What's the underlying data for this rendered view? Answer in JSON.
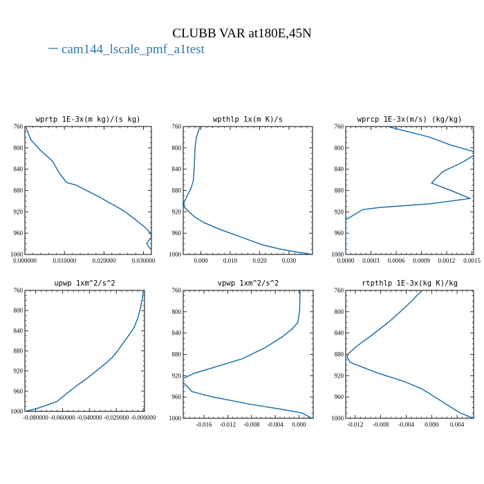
{
  "figure": {
    "title": "CLUBB VAR at180E,45N",
    "legend_label": "cam144_lscale_pmf_a1test",
    "legend_color": "#2a7ab0",
    "line_color": "#1f6fa8"
  },
  "chart_data": [
    {
      "type": "line",
      "title": "wprtp  1E-3x(m kg)/(s kg)",
      "xlim": [
        0.0,
        0.032
      ],
      "ylim": [
        760,
        1000
      ],
      "y_inverted": true,
      "xticks": [
        0.0,
        0.01,
        0.02,
        0.03
      ],
      "xtick_labels": [
        "0.000000",
        "0.010000",
        "0.020000",
        "0.030000"
      ],
      "yticks": [
        760,
        800,
        840,
        880,
        920,
        960,
        1000
      ],
      "ytick_labels": [
        "760",
        "800",
        "840",
        "880",
        "920",
        "960",
        "1000"
      ],
      "series": [
        {
          "x": [
            0.0002,
            0.0015,
            0.004,
            0.007,
            0.0085,
            0.0105,
            0.013,
            0.019,
            0.025,
            0.028,
            0.0305,
            0.0318,
            0.032,
            0.0312,
            0.0308,
            0.0318
          ],
          "y": [
            760,
            785,
            805,
            825,
            845,
            865,
            870,
            893,
            918,
            935,
            950,
            960,
            968,
            975,
            980,
            990
          ]
        }
      ]
    },
    {
      "type": "line",
      "title": "wpthlp  1x(m K)/s",
      "xlim": [
        -0.006,
        0.038
      ],
      "ylim": [
        760,
        1000
      ],
      "y_inverted": true,
      "xticks": [
        0.0,
        0.01,
        0.02,
        0.03
      ],
      "xtick_labels": [
        "0.000",
        "0.010",
        "0.020",
        "0.030"
      ],
      "yticks": [
        760,
        800,
        840,
        880,
        920,
        960,
        1000
      ],
      "ytick_labels": [
        "760",
        "800",
        "840",
        "880",
        "920",
        "960",
        "1000"
      ],
      "series": [
        {
          "x": [
            -0.0003,
            -0.0015,
            -0.002,
            -0.0022,
            -0.0025,
            -0.0033,
            -0.0058,
            -0.0055,
            -0.004,
            -0.002,
            0.001,
            0.006,
            0.011,
            0.016,
            0.021,
            0.027,
            0.032,
            0.038
          ],
          "y": [
            760,
            780,
            800,
            830,
            860,
            875,
            903,
            912,
            920,
            930,
            940,
            952,
            962,
            972,
            982,
            990,
            995,
            1000
          ]
        }
      ]
    },
    {
      "type": "line",
      "title": "wprcp  1E-3x(m/s) (kg/kg)",
      "xlim": [
        0.0,
        0.00152
      ],
      "ylim": [
        760,
        1000
      ],
      "y_inverted": true,
      "xticks": [
        0.0,
        0.0003,
        0.0006,
        0.0009,
        0.0012,
        0.0015
      ],
      "xtick_labels": [
        "0.0000",
        "0.0003",
        "0.0006",
        "0.0009",
        "0.0012",
        "0.0015"
      ],
      "yticks": [
        760,
        800,
        840,
        880,
        920,
        960,
        1000
      ],
      "ytick_labels": [
        "760",
        "800",
        "840",
        "880",
        "920",
        "960",
        "1000"
      ],
      "series": [
        {
          "x": [
            0.0005,
            0.001,
            0.00125,
            0.0015,
            0.00155,
            0.0014,
            0.00115,
            0.00102,
            0.00125,
            0.00148,
            0.001,
            0.0004,
            0.0002,
            0.0,
            0.0,
            0.0
          ],
          "y": [
            760,
            780,
            795,
            806,
            811,
            826,
            845,
            866,
            880,
            895,
            905,
            912,
            916,
            935,
            960,
            1000
          ]
        }
      ]
    },
    {
      "type": "line",
      "title": "upwp  1xm^2/s^2",
      "xlim": [
        -0.088,
        0.001
      ],
      "ylim": [
        760,
        1000
      ],
      "y_inverted": true,
      "xticks": [
        -0.08,
        -0.06,
        -0.04,
        -0.02,
        0.0
      ],
      "xtick_labels": [
        "-0.080000",
        "-0.060000",
        "-0.040000",
        "-0.020000",
        "-0.000000"
      ],
      "yticks": [
        760,
        800,
        840,
        880,
        920,
        960,
        1000
      ],
      "ytick_labels": [
        "760",
        "800",
        "840",
        "880",
        "920",
        "960",
        "1000"
      ],
      "series": [
        {
          "x": [
            -0.088,
            -0.08,
            -0.072,
            -0.064,
            -0.058,
            -0.05,
            -0.042,
            -0.035,
            -0.028,
            -0.023,
            -0.019,
            -0.015,
            -0.011,
            -0.007,
            -0.004,
            -0.002,
            -0.0005,
            0.0
          ],
          "y": [
            1000,
            995,
            988,
            980,
            967,
            950,
            935,
            920,
            905,
            893,
            880,
            865,
            850,
            835,
            815,
            795,
            775,
            760
          ]
        }
      ]
    },
    {
      "type": "line",
      "title": "vpwp  1xm^2/s^2",
      "xlim": [
        -0.0195,
        0.0024
      ],
      "ylim": [
        760,
        1000
      ],
      "y_inverted": true,
      "xticks": [
        -0.016,
        -0.012,
        -0.008,
        -0.004,
        0.0
      ],
      "xtick_labels": [
        "-0.016",
        "-0.012",
        "-0.008",
        "-0.004",
        "0.000"
      ],
      "yticks": [
        760,
        800,
        840,
        880,
        920,
        960,
        1000
      ],
      "ytick_labels": [
        "760",
        "800",
        "840",
        "880",
        "920",
        "960",
        "1000"
      ],
      "series": [
        {
          "x": [
            0.0002,
            0.0001,
            -0.0002,
            -0.0012,
            -0.0028,
            -0.0058,
            -0.0095,
            -0.0145,
            -0.0175,
            -0.0195,
            -0.0195,
            -0.018,
            -0.0145,
            -0.0085,
            -0.003,
            0.0005,
            0.0022
          ],
          "y": [
            760,
            800,
            820,
            833,
            847,
            868,
            888,
            905,
            915,
            925,
            933,
            950,
            960,
            973,
            983,
            990,
            1000
          ]
        }
      ]
    },
    {
      "type": "line",
      "title": "rtpthlp  1E-3x(kg K)/kg",
      "xlim": [
        -0.0135,
        0.0066
      ],
      "ylim": [
        760,
        1000
      ],
      "y_inverted": true,
      "xticks": [
        -0.012,
        -0.008,
        -0.004,
        0.0,
        0.004
      ],
      "xtick_labels": [
        "-0.012",
        "-0.008",
        "-0.004",
        "0.000",
        "0.004"
      ],
      "yticks": [
        760,
        800,
        840,
        880,
        920,
        960,
        1000
      ],
      "ytick_labels": [
        "760",
        "800",
        "840",
        "880",
        "920",
        "960",
        "1000"
      ],
      "series": [
        {
          "x": [
            -0.0015,
            -0.004,
            -0.0068,
            -0.0095,
            -0.0118,
            -0.0132,
            -0.0133,
            -0.0128,
            -0.0085,
            -0.0045,
            -0.0015,
            0.0005,
            0.0025,
            0.0045,
            0.0066
          ],
          "y": [
            760,
            790,
            820,
            845,
            865,
            880,
            885,
            895,
            915,
            930,
            945,
            960,
            975,
            990,
            1000
          ]
        }
      ]
    }
  ]
}
